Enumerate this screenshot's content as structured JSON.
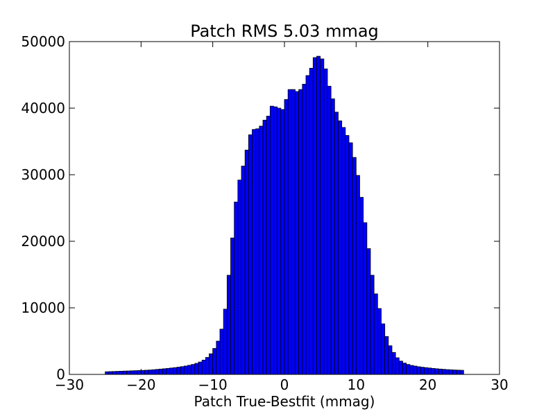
{
  "chart_data": {
    "type": "bar",
    "title": "Patch RMS 5.03 mmag",
    "xlabel": "Patch True-Bestfit (mmag)",
    "ylabel": "",
    "xlim": [
      -30,
      30
    ],
    "ylim": [
      0,
      50000
    ],
    "xticks": [
      -30,
      -20,
      -10,
      0,
      10,
      20,
      30
    ],
    "xtick_labels": [
      "−30",
      "−20",
      "−10",
      "0",
      "10",
      "20",
      "30"
    ],
    "yticks": [
      0,
      10000,
      20000,
      30000,
      40000,
      50000
    ],
    "ytick_labels": [
      "0",
      "10000",
      "20000",
      "30000",
      "40000",
      "50000"
    ],
    "grid": false,
    "bar_color": "#0000ff",
    "edge_color": "#000000",
    "bin_width": 0.5,
    "bin_start": -25,
    "values": [
      400,
      420,
      440,
      460,
      480,
      500,
      520,
      540,
      560,
      580,
      600,
      630,
      660,
      700,
      750,
      800,
      850,
      900,
      960,
      1020,
      1090,
      1170,
      1260,
      1370,
      1500,
      1660,
      1860,
      2150,
      2550,
      3100,
      3900,
      5000,
      6800,
      9800,
      14900,
      20500,
      25900,
      29200,
      31300,
      33700,
      36000,
      36800,
      36900,
      37300,
      38200,
      38800,
      40300,
      40200,
      40000,
      39800,
      41300,
      42800,
      42800,
      42500,
      42800,
      43600,
      44900,
      46000,
      47600,
      47800,
      47400,
      45900,
      43300,
      41400,
      39400,
      38100,
      37100,
      35900,
      34800,
      32600,
      29900,
      26600,
      22800,
      18900,
      14900,
      12100,
      9900,
      7600,
      5700,
      4300,
      3300,
      2500,
      2000,
      1700,
      1500,
      1350,
      1250,
      1150,
      1080,
      1020,
      960,
      900,
      850,
      800,
      760,
      720,
      690,
      660,
      640,
      620
    ]
  }
}
